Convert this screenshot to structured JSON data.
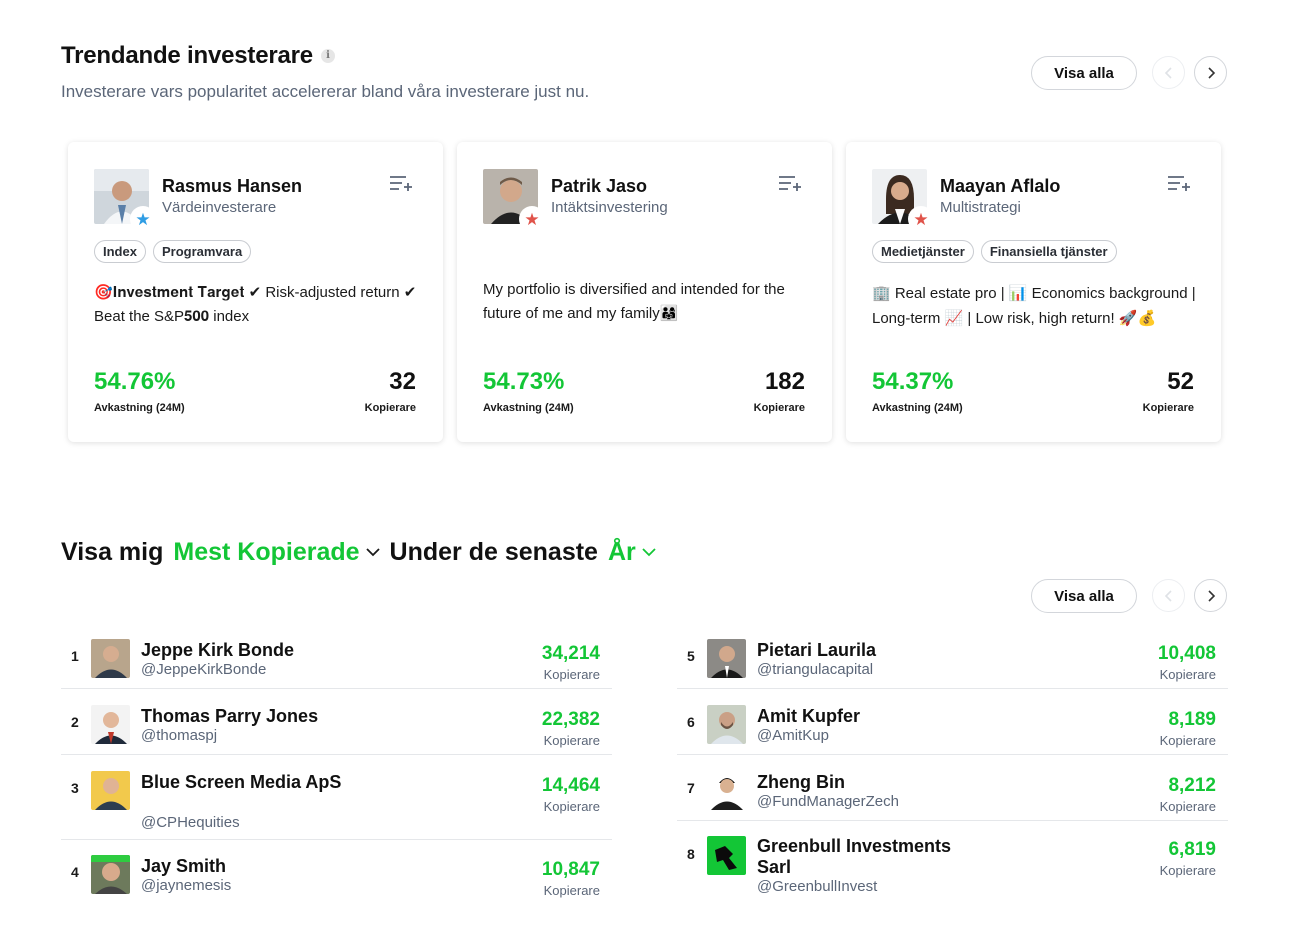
{
  "trending": {
    "title": "Trendande investerare",
    "info_icon": "i",
    "subtitle": "Investerare vars popularitet accelererar bland våra investerare just nu.",
    "view_all": "Visa alla",
    "cards": [
      {
        "name": "Rasmus Hansen",
        "type": "Värdeinvesterare",
        "star_color": "#2f9de4",
        "tags": [
          "Index",
          "Programvara"
        ],
        "bio": "🎯𝐈𝐧𝐯𝐞𝐬𝐭𝐦𝐞𝐧𝐭 𝐓𝐚𝐫𝐠𝐞𝐭 ✔ Risk-adjusted return ✔ Beat the S&P𝟓𝟎𝟎 index",
        "gain": "54.76%",
        "gain_label": "Avkastning (24M)",
        "copiers": "32",
        "copiers_label": "Kopierare"
      },
      {
        "name": "Patrik Jaso",
        "type": "Intäktsinvestering",
        "star_color": "#e0534a",
        "tags": [],
        "bio": "My portfolio is diversified and intended for the future of me and my family👨‍👩‍👧",
        "gain": "54.73%",
        "gain_label": "Avkastning (24M)",
        "copiers": "182",
        "copiers_label": "Kopierare"
      },
      {
        "name": "Maayan Aflalo",
        "type": "Multistrategi",
        "star_color": "#e0534a",
        "tags": [
          "Medietjänster",
          "Finansiella tjänster"
        ],
        "bio": "🏢 Real estate pro | 📊 Economics background | Long-term 📈 | Low risk, high return! 🚀💰",
        "gain": "54.37%",
        "gain_label": "Avkastning (24M)",
        "copiers": "52",
        "copiers_label": "Kopierare"
      }
    ]
  },
  "filter": {
    "prefix": "Visa mig",
    "metric": "Mest Kopierade",
    "middle": "Under de senaste",
    "period": "År",
    "view_all": "Visa alla"
  },
  "leaderboard": [
    {
      "rank": "1",
      "name": "Jeppe Kirk Bonde",
      "user": "@JeppeKirkBonde",
      "value": "34,214",
      "label": "Kopierare"
    },
    {
      "rank": "2",
      "name": "Thomas Parry Jones",
      "user": "@thomaspj",
      "value": "22,382",
      "label": "Kopierare"
    },
    {
      "rank": "3",
      "name": "Blue Screen Media ApS",
      "user": "@CPHequities",
      "value": "14,464",
      "label": "Kopierare"
    },
    {
      "rank": "4",
      "name": "Jay Smith",
      "user": "@jaynemesis",
      "value": "10,847",
      "label": "Kopierare"
    },
    {
      "rank": "5",
      "name": "Pietari Laurila",
      "user": "@triangulacapital",
      "value": "10,408",
      "label": "Kopierare"
    },
    {
      "rank": "6",
      "name": "Amit Kupfer",
      "user": "@AmitKup",
      "value": "8,189",
      "label": "Kopierare"
    },
    {
      "rank": "7",
      "name": "Zheng Bin",
      "user": "@FundManagerZech",
      "value": "8,212",
      "label": "Kopierare"
    },
    {
      "rank": "8",
      "name": "Greenbull Investments Sarl",
      "user": "@GreenbullInvest",
      "value": "6,819",
      "label": "Kopierare"
    }
  ],
  "colors": {
    "accent_green": "#13c636",
    "muted_text": "#5b6678"
  }
}
